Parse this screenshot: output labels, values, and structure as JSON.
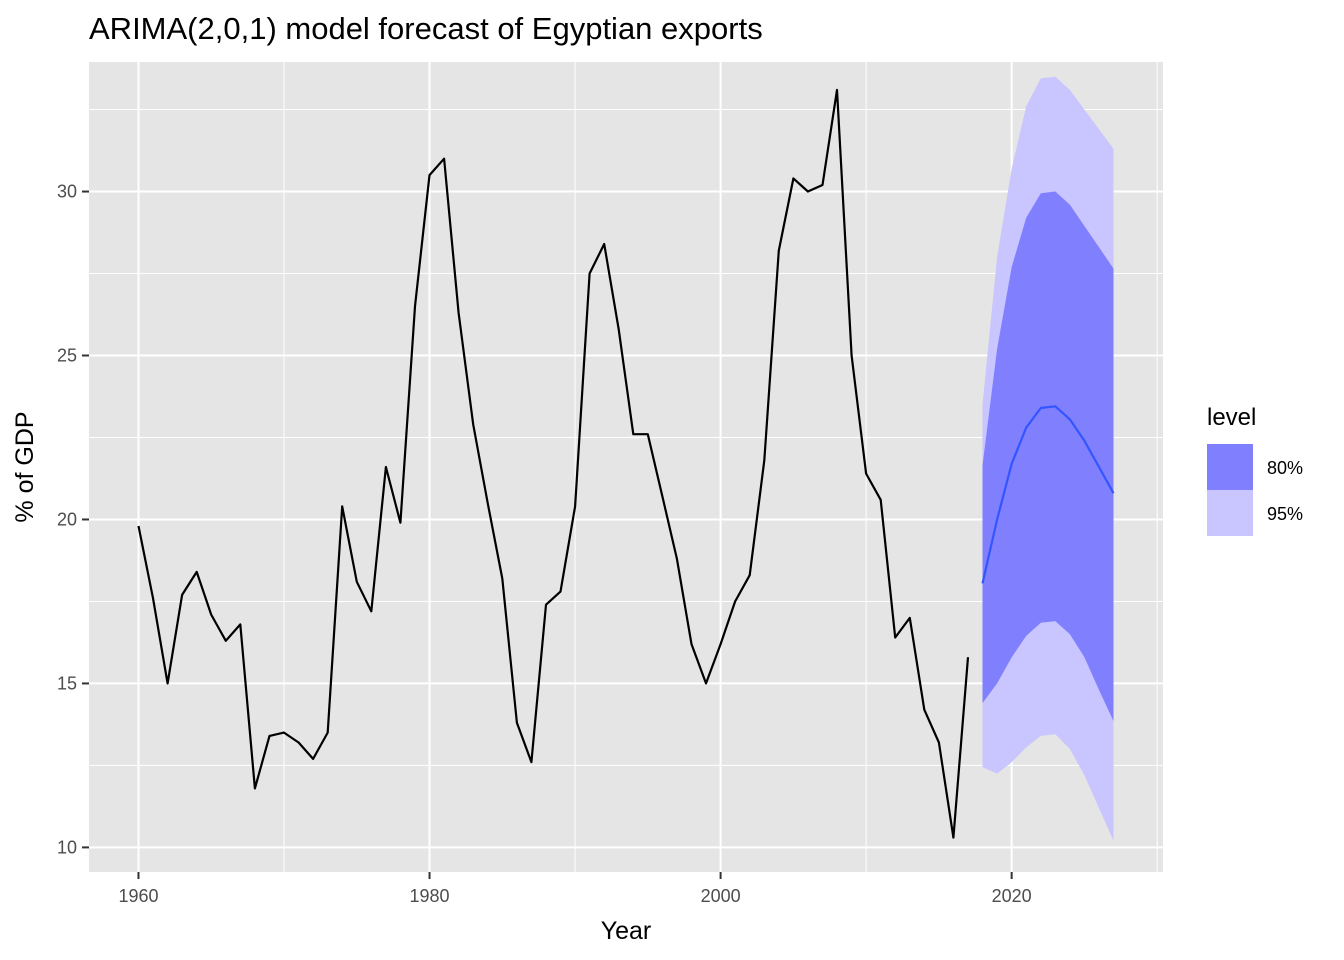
{
  "chart_data": {
    "type": "line",
    "title": "ARIMA(2,0,1) model forecast of Egyptian exports",
    "xlabel": "Year",
    "ylabel": "% of GDP",
    "xlim": [
      1956.6,
      2030.4
    ],
    "ylim": [
      9.25,
      33.95
    ],
    "xticks": [
      1960,
      1980,
      2000,
      2020
    ],
    "xtick_labels": [
      "1960",
      "1980",
      "2000",
      "2020"
    ],
    "yticks": [
      10,
      15,
      20,
      25,
      30
    ],
    "ytick_labels": [
      "10",
      "15",
      "20",
      "25",
      "30"
    ],
    "grid": true,
    "legend": {
      "title": "level",
      "position": "right",
      "entries": [
        {
          "label": "80%",
          "color": "#8080ff"
        },
        {
          "label": "95%",
          "color": "#c8c5ff"
        }
      ]
    },
    "colors": {
      "panel_background": "#e5e5e5",
      "grid": "#ffffff",
      "history_line": "#000000",
      "forecast_line": "#3355ff",
      "band_80": "#8080ff",
      "band_95": "#c8c5ff"
    },
    "history": {
      "x": [
        1960,
        1961,
        1962,
        1963,
        1964,
        1965,
        1966,
        1967,
        1968,
        1969,
        1970,
        1971,
        1972,
        1973,
        1974,
        1975,
        1976,
        1977,
        1978,
        1979,
        1980,
        1981,
        1982,
        1983,
        1984,
        1985,
        1986,
        1987,
        1988,
        1989,
        1990,
        1991,
        1992,
        1993,
        1994,
        1995,
        1996,
        1997,
        1998,
        1999,
        2000,
        2001,
        2002,
        2003,
        2004,
        2005,
        2006,
        2007,
        2008,
        2009,
        2010,
        2011,
        2012,
        2013,
        2014,
        2015,
        2016,
        2017
      ],
      "y": [
        19.8,
        17.6,
        15.0,
        17.7,
        18.4,
        17.1,
        16.3,
        16.8,
        11.8,
        13.4,
        13.5,
        13.2,
        12.7,
        13.5,
        20.4,
        18.1,
        17.2,
        21.6,
        19.9,
        26.5,
        30.5,
        31.0,
        26.3,
        22.9,
        20.5,
        18.2,
        13.8,
        12.6,
        17.4,
        17.8,
        20.4,
        27.5,
        28.4,
        25.8,
        22.6,
        22.6,
        20.7,
        18.8,
        16.2,
        15.0,
        16.2,
        17.5,
        18.3,
        21.8,
        28.2,
        30.4,
        30.0,
        30.2,
        33.1,
        25.0,
        21.4,
        20.6,
        16.4,
        17.0,
        14.2,
        13.2,
        10.3,
        15.8
      ]
    },
    "forecast": {
      "x": [
        2018,
        2019,
        2020,
        2021,
        2022,
        2023,
        2024,
        2025,
        2026,
        2027
      ],
      "mean": [
        18.05,
        20.0,
        21.7,
        22.8,
        23.4,
        23.45,
        23.05,
        22.4,
        21.6,
        20.8
      ],
      "lo80": [
        14.4,
        15.0,
        15.8,
        16.45,
        16.85,
        16.9,
        16.5,
        15.8,
        14.8,
        13.85
      ],
      "hi80": [
        21.65,
        25.2,
        27.7,
        29.2,
        29.95,
        30.0,
        29.6,
        28.95,
        28.3,
        27.65
      ],
      "lo95": [
        12.45,
        12.25,
        12.6,
        13.05,
        13.4,
        13.45,
        13.0,
        12.2,
        11.2,
        10.2
      ],
      "hi95": [
        23.5,
        28.0,
        30.7,
        32.6,
        33.45,
        33.5,
        33.1,
        32.5,
        31.9,
        31.3
      ]
    }
  }
}
